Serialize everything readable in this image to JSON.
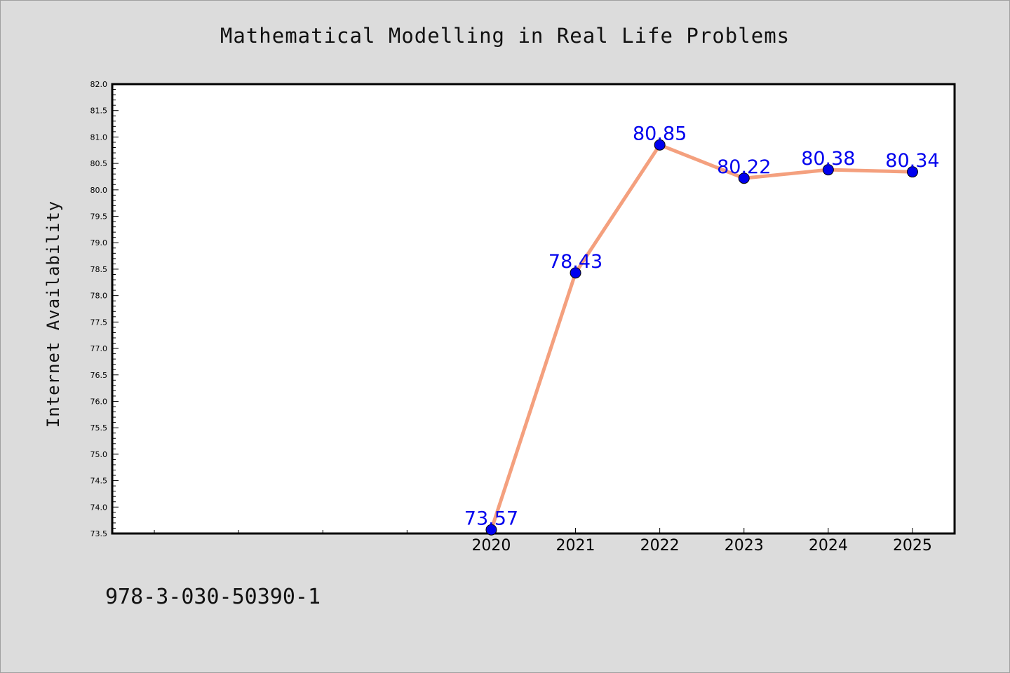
{
  "chart_data": {
    "type": "line",
    "title": "Mathematical Modelling in Real Life Problems",
    "ylabel": "Internet Availability",
    "xlabel": "",
    "x_axis": {
      "min": 2015.5,
      "max": 2025.5,
      "labeled_ticks": [
        "2020",
        "2021",
        "2022",
        "2023",
        "2024",
        "2025"
      ],
      "minor_ticks_unlabeled": [
        2016,
        2017,
        2018,
        2019
      ]
    },
    "ylim": [
      73.5,
      82.0
    ],
    "y_ticks": [
      "73.5",
      "74.0",
      "74.5",
      "75.0",
      "75.5",
      "76.0",
      "76.5",
      "77.0",
      "77.5",
      "78.0",
      "78.5",
      "79.0",
      "79.5",
      "80.0",
      "80.5",
      "81.0",
      "81.5",
      "82.0"
    ],
    "x": [
      "2020",
      "2021",
      "2022",
      "2023",
      "2024",
      "2025"
    ],
    "values": [
      73.57,
      78.43,
      80.85,
      80.22,
      80.38,
      80.34
    ],
    "data_labels": [
      "73.57",
      "78.43",
      "80.85",
      "80.22",
      "80.38",
      "80.34"
    ],
    "colors": {
      "line": "#f4a07e",
      "marker": "#0000ee",
      "label": "#0000ee",
      "plot_bg": "#ffffff",
      "page_bg": "#dcdcdc"
    },
    "grid": false,
    "legend": "none"
  },
  "footer": {
    "isbn": "978-3-030-50390-1"
  }
}
